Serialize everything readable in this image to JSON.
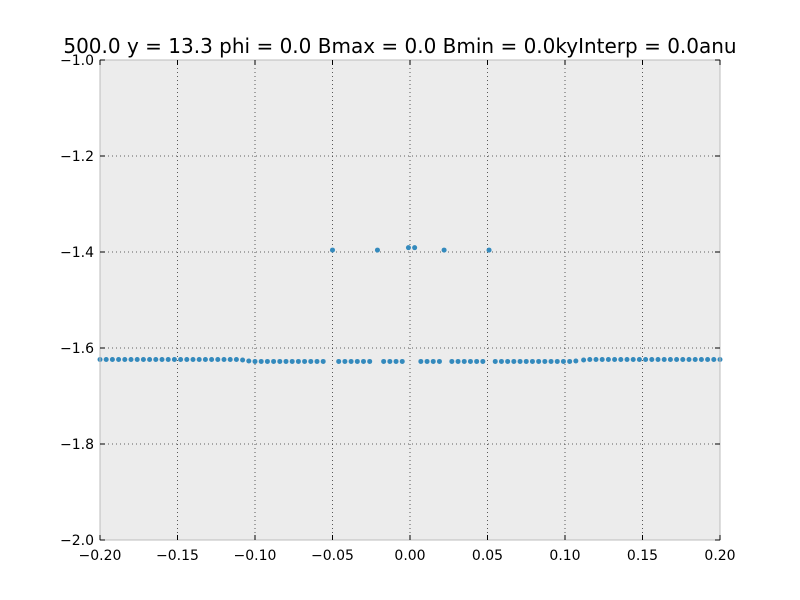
{
  "chart_data": {
    "type": "scatter",
    "title": "500.0 y = 13.3 phi = 0.0 Bmax = 0.0 Bmin = 0.0kyInterp = 0.0anu",
    "xlabel": "",
    "ylabel": "",
    "xlim": [
      -0.2,
      0.2
    ],
    "ylim": [
      -2.0,
      -1.0
    ],
    "grid": true,
    "x_ticks": [
      "−0.20",
      "−0.15",
      "−0.10",
      "−0.05",
      "0.00",
      "0.05",
      "0.10",
      "0.15",
      "0.20"
    ],
    "y_ticks": [
      "−1.0",
      "−1.2",
      "−1.4",
      "−1.6",
      "−1.8",
      "−2.0"
    ],
    "x_tick_values": [
      -0.2,
      -0.15,
      -0.1,
      -0.05,
      0.0,
      0.05,
      0.1,
      0.15,
      0.2
    ],
    "y_tick_values": [
      -1.0,
      -1.2,
      -1.4,
      -1.6,
      -1.8,
      -2.0
    ],
    "series": [
      {
        "color": "#348abd",
        "points": [
          [
            -0.2,
            -1.624
          ],
          [
            -0.196,
            -1.624
          ],
          [
            -0.192,
            -1.624
          ],
          [
            -0.188,
            -1.624
          ],
          [
            -0.184,
            -1.624
          ],
          [
            -0.18,
            -1.624
          ],
          [
            -0.176,
            -1.624
          ],
          [
            -0.172,
            -1.624
          ],
          [
            -0.168,
            -1.624
          ],
          [
            -0.164,
            -1.624
          ],
          [
            -0.16,
            -1.624
          ],
          [
            -0.156,
            -1.624
          ],
          [
            -0.152,
            -1.624
          ],
          [
            -0.148,
            -1.624
          ],
          [
            -0.144,
            -1.624
          ],
          [
            -0.14,
            -1.624
          ],
          [
            -0.136,
            -1.624
          ],
          [
            -0.132,
            -1.624
          ],
          [
            -0.128,
            -1.624
          ],
          [
            -0.124,
            -1.624
          ],
          [
            -0.12,
            -1.624
          ],
          [
            -0.116,
            -1.624
          ],
          [
            -0.112,
            -1.624
          ],
          [
            -0.108,
            -1.625
          ],
          [
            -0.104,
            -1.627
          ],
          [
            -0.1,
            -1.628
          ],
          [
            -0.096,
            -1.628
          ],
          [
            -0.092,
            -1.628
          ],
          [
            -0.088,
            -1.628
          ],
          [
            -0.084,
            -1.628
          ],
          [
            -0.08,
            -1.628
          ],
          [
            -0.076,
            -1.628
          ],
          [
            -0.072,
            -1.628
          ],
          [
            -0.068,
            -1.628
          ],
          [
            -0.064,
            -1.628
          ],
          [
            -0.06,
            -1.628
          ],
          [
            -0.056,
            -1.628
          ],
          [
            -0.046,
            -1.628
          ],
          [
            -0.042,
            -1.628
          ],
          [
            -0.038,
            -1.628
          ],
          [
            -0.034,
            -1.628
          ],
          [
            -0.03,
            -1.628
          ],
          [
            -0.026,
            -1.628
          ],
          [
            -0.017,
            -1.628
          ],
          [
            -0.013,
            -1.628
          ],
          [
            -0.009,
            -1.628
          ],
          [
            -0.005,
            -1.628
          ],
          [
            0.007,
            -1.628
          ],
          [
            0.011,
            -1.628
          ],
          [
            0.015,
            -1.628
          ],
          [
            0.019,
            -1.628
          ],
          [
            0.027,
            -1.628
          ],
          [
            0.031,
            -1.628
          ],
          [
            0.035,
            -1.628
          ],
          [
            0.039,
            -1.628
          ],
          [
            0.043,
            -1.628
          ],
          [
            0.047,
            -1.628
          ],
          [
            0.055,
            -1.628
          ],
          [
            0.059,
            -1.628
          ],
          [
            0.063,
            -1.628
          ],
          [
            0.067,
            -1.628
          ],
          [
            0.071,
            -1.628
          ],
          [
            0.075,
            -1.628
          ],
          [
            0.079,
            -1.628
          ],
          [
            0.083,
            -1.628
          ],
          [
            0.087,
            -1.628
          ],
          [
            0.091,
            -1.628
          ],
          [
            0.095,
            -1.628
          ],
          [
            0.099,
            -1.628
          ],
          [
            0.103,
            -1.628
          ],
          [
            0.107,
            -1.627
          ],
          [
            0.112,
            -1.625
          ],
          [
            0.116,
            -1.624
          ],
          [
            0.12,
            -1.624
          ],
          [
            0.124,
            -1.624
          ],
          [
            0.128,
            -1.624
          ],
          [
            0.132,
            -1.624
          ],
          [
            0.136,
            -1.624
          ],
          [
            0.14,
            -1.624
          ],
          [
            0.144,
            -1.624
          ],
          [
            0.148,
            -1.624
          ],
          [
            0.152,
            -1.624
          ],
          [
            0.156,
            -1.624
          ],
          [
            0.16,
            -1.624
          ],
          [
            0.164,
            -1.624
          ],
          [
            0.168,
            -1.624
          ],
          [
            0.172,
            -1.624
          ],
          [
            0.176,
            -1.624
          ],
          [
            0.18,
            -1.624
          ],
          [
            0.184,
            -1.624
          ],
          [
            0.188,
            -1.624
          ],
          [
            0.192,
            -1.624
          ],
          [
            0.196,
            -1.624
          ],
          [
            0.2,
            -1.624
          ],
          [
            -0.05,
            -1.396
          ],
          [
            -0.021,
            -1.396
          ],
          [
            -0.001,
            -1.391
          ],
          [
            0.003,
            -1.391
          ],
          [
            0.022,
            -1.396
          ],
          [
            0.051,
            -1.396
          ]
        ]
      }
    ]
  }
}
